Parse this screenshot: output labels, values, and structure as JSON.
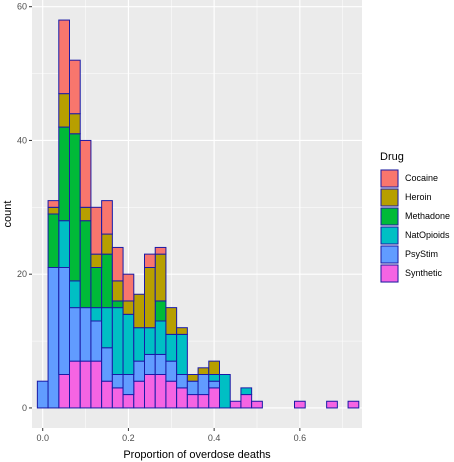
{
  "chart_data": {
    "type": "bar",
    "stacked": true,
    "xlabel": "Proportion of overdose deaths",
    "ylabel": "count",
    "xlim": [
      -0.025,
      0.745
    ],
    "ylim": [
      -3,
      61
    ],
    "x_ticks": [
      0.0,
      0.2,
      0.4,
      0.6
    ],
    "x_tick_labels": [
      "0.0",
      "0.2",
      "0.4",
      "0.6"
    ],
    "y_ticks": [
      0,
      20,
      40,
      60
    ],
    "y_tick_labels": [
      "0",
      "20",
      "40",
      "60"
    ],
    "grid": true,
    "legend": {
      "title": "Drug",
      "position": "right"
    },
    "bin_width": 0.025,
    "bin_starts": [
      -0.0125,
      0.0125,
      0.0375,
      0.0625,
      0.0875,
      0.1125,
      0.1375,
      0.1625,
      0.1875,
      0.2125,
      0.2375,
      0.2625,
      0.2875,
      0.3125,
      0.3375,
      0.3625,
      0.3875,
      0.4125,
      0.4375,
      0.4625,
      0.4875,
      0.5125,
      0.5375,
      0.5625,
      0.5875,
      0.6125,
      0.6375,
      0.6625,
      0.6875,
      0.7125
    ],
    "series": [
      {
        "name": "Synthetic",
        "color": "#F564E3",
        "values": [
          0,
          0,
          5,
          7,
          7,
          7,
          4,
          3,
          2,
          4,
          5,
          5,
          4,
          3,
          2,
          2,
          3,
          0,
          1,
          2,
          1,
          0,
          0,
          0,
          1,
          0,
          0,
          1,
          0,
          1
        ]
      },
      {
        "name": "PsyStim",
        "color": "#619CFF",
        "values": [
          4,
          21,
          16,
          8,
          8,
          6,
          5,
          2,
          3,
          3,
          3,
          3,
          3,
          2,
          2,
          3,
          1,
          0,
          0,
          0,
          0,
          0,
          0,
          0,
          0,
          0,
          0,
          0,
          0,
          0
        ]
      },
      {
        "name": "NatOpioids",
        "color": "#00BFC4",
        "values": [
          0,
          0,
          7,
          4,
          0,
          2,
          6,
          10,
          9,
          5,
          4,
          5,
          4,
          6,
          0,
          0,
          1,
          5,
          0,
          1,
          0,
          0,
          0,
          0,
          0,
          0,
          0,
          0,
          0,
          0
        ]
      },
      {
        "name": "Methadone",
        "color": "#00BA38",
        "values": [
          0,
          8,
          14,
          22,
          13,
          6,
          8,
          1,
          0,
          0,
          0,
          3,
          0,
          0,
          0,
          0,
          0,
          0,
          0,
          0,
          0,
          0,
          0,
          0,
          0,
          0,
          0,
          0,
          0,
          0
        ]
      },
      {
        "name": "Heroin",
        "color": "#B79F00",
        "values": [
          0,
          1,
          5,
          3,
          2,
          2,
          3,
          3,
          2,
          5,
          9,
          7,
          4,
          1,
          1,
          1,
          2,
          0,
          0,
          0,
          0,
          0,
          0,
          0,
          0,
          0,
          0,
          0,
          0,
          0
        ]
      },
      {
        "name": "Cocaine",
        "color": "#F8766D",
        "values": [
          0,
          1,
          11,
          8,
          10,
          7,
          5,
          5,
          4,
          0,
          2,
          1,
          0,
          0,
          0,
          0,
          0,
          0,
          0,
          0,
          0,
          0,
          0,
          0,
          0,
          0,
          0,
          0,
          0,
          0
        ]
      }
    ],
    "legend_order": [
      "Cocaine",
      "Heroin",
      "Methadone",
      "NatOpioids",
      "PsyStim",
      "Synthetic"
    ],
    "outline_color": "#1a1aa6",
    "panel_background": "#EBEBEB",
    "grid_color": "#ffffff"
  }
}
